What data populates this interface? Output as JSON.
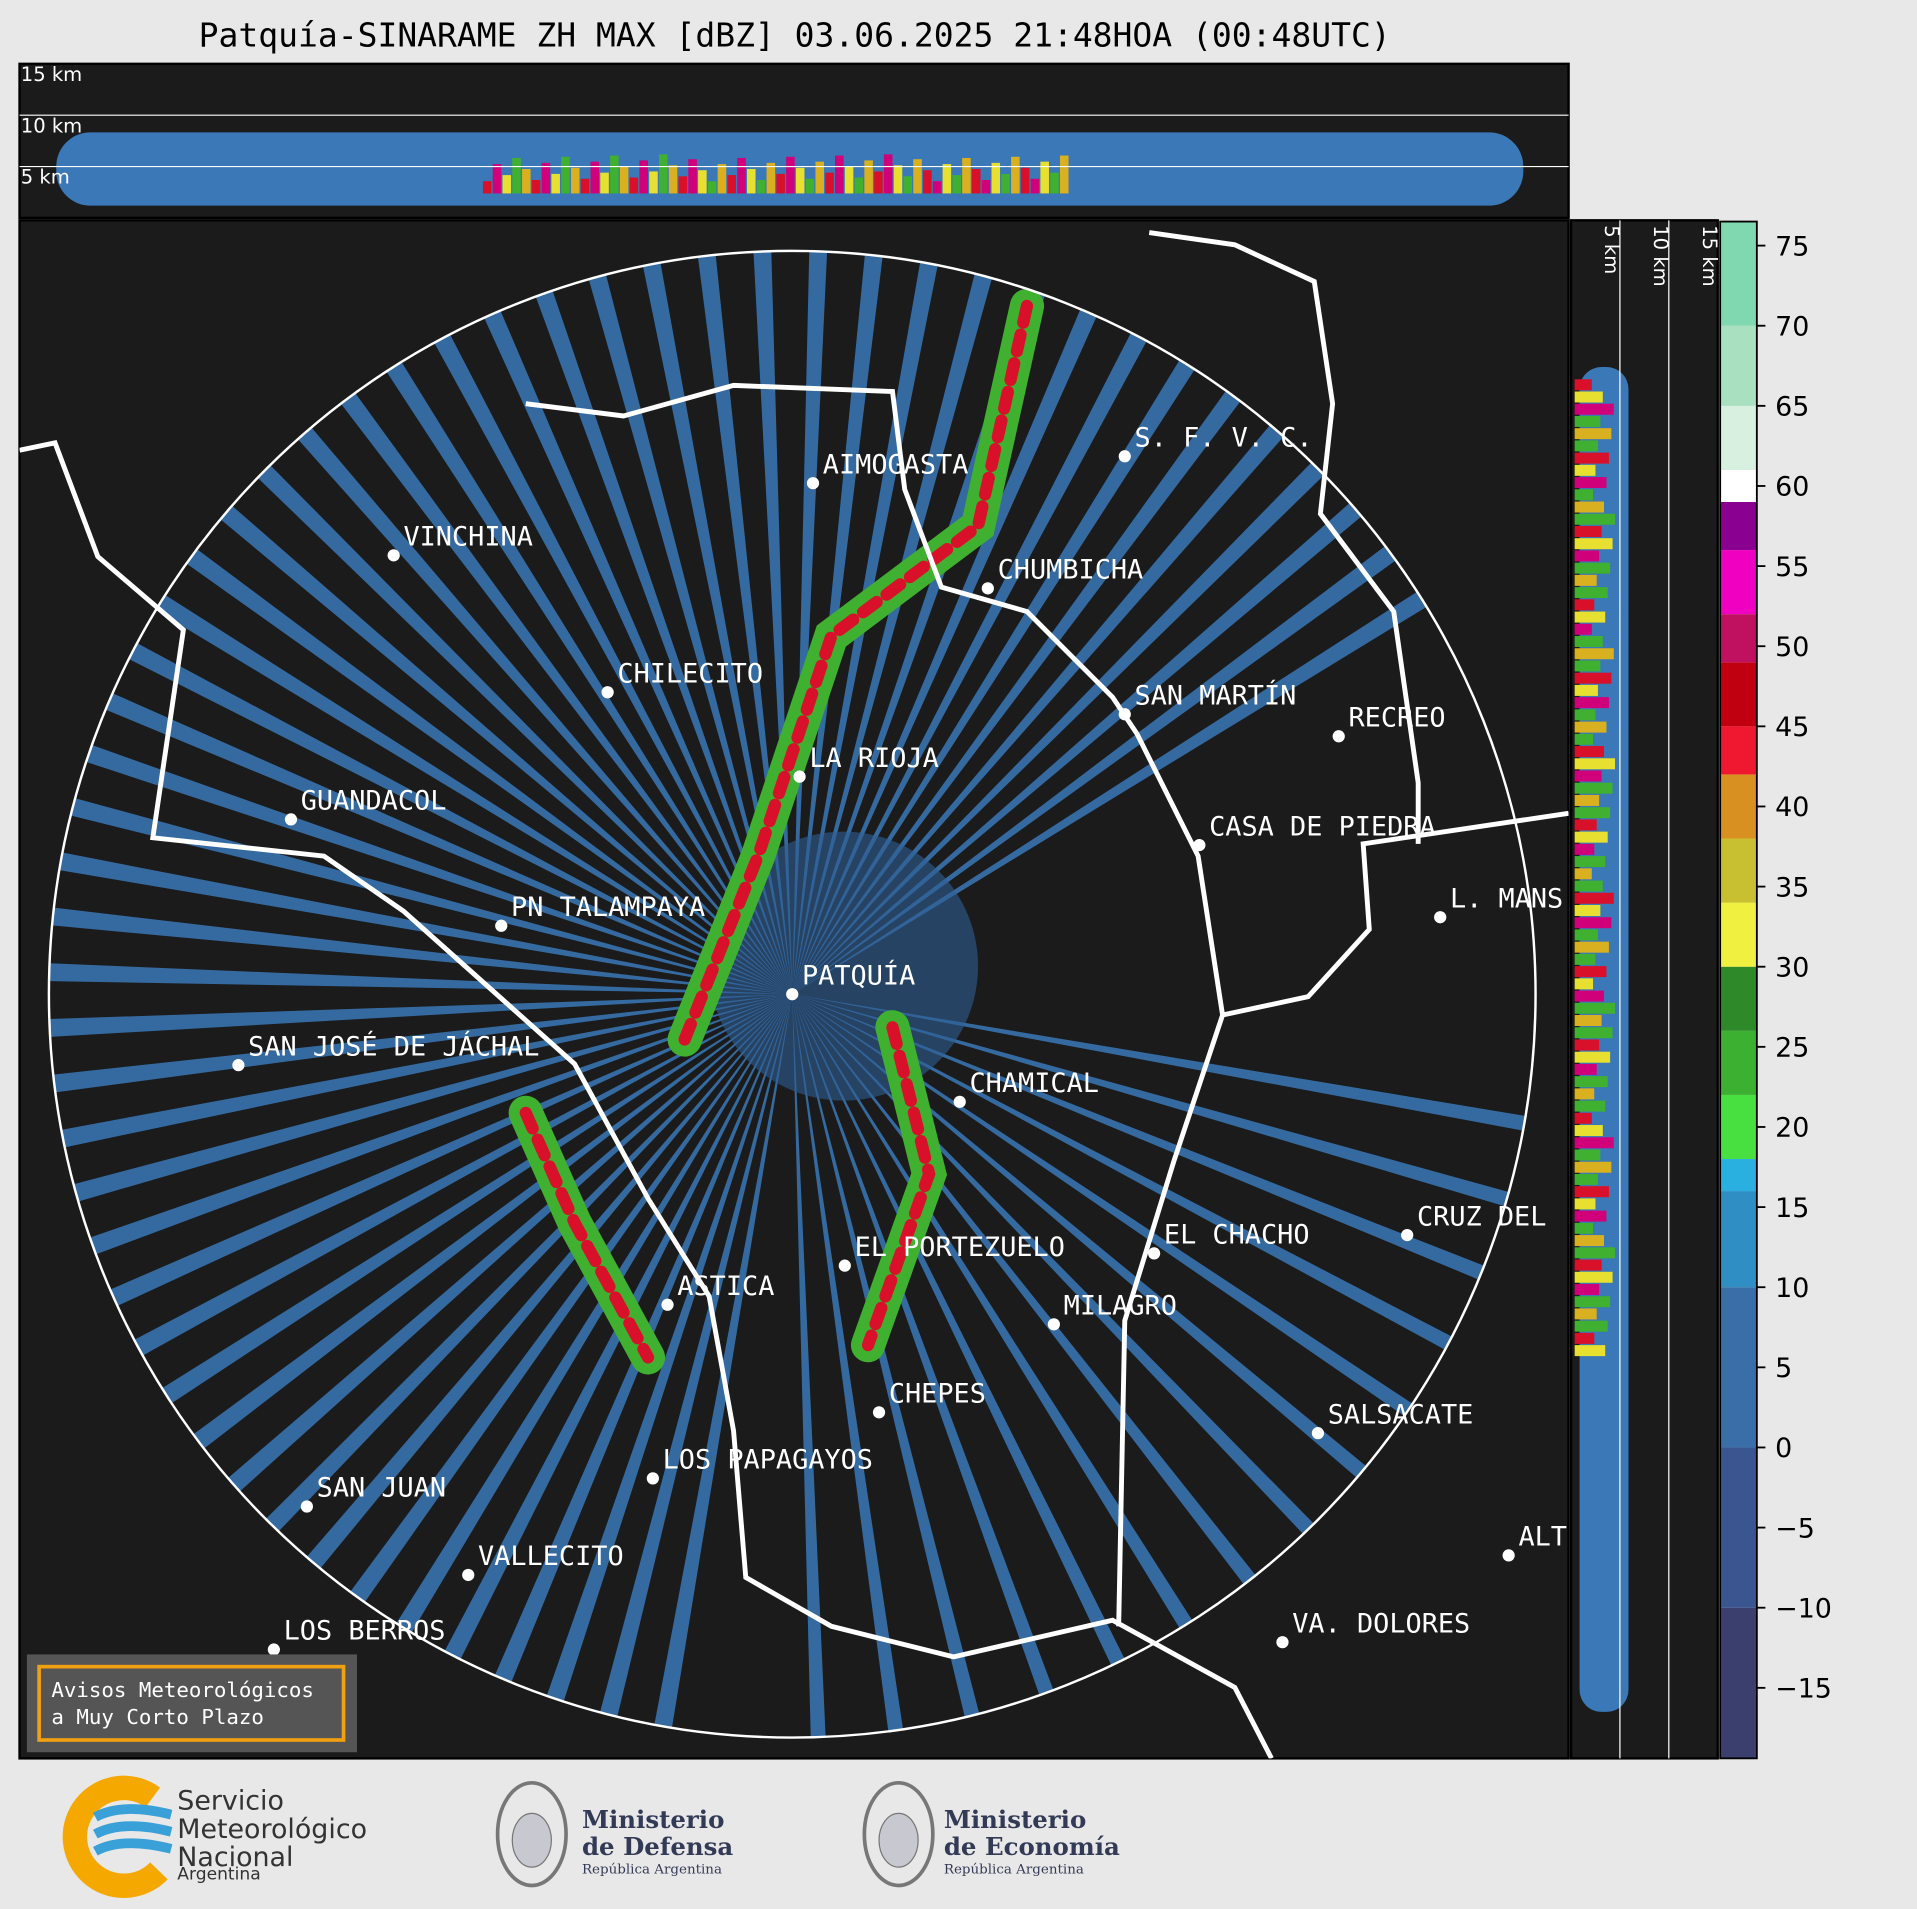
{
  "title": "Patquía-SINARAME ZH MAX [dBZ] 03.06.2025 21:48HOA (00:48UTC)",
  "top_panel": {
    "labels": [
      "15 km",
      "10 km",
      "5 km"
    ]
  },
  "side_panel": {
    "labels": [
      "5 km",
      "10 km",
      "15 km"
    ]
  },
  "colorbar": {
    "lim": [
      -19.4,
      76.5
    ],
    "ticks": [
      75,
      70,
      65,
      60,
      55,
      50,
      45,
      40,
      35,
      30,
      25,
      20,
      15,
      10,
      5,
      0,
      {
        "value": -5,
        "label": "−5"
      },
      {
        "value": -10,
        "label": "−10"
      },
      {
        "value": -15,
        "label": "−15"
      }
    ]
  },
  "cities": [
    "AIMOGASTA",
    "VINCHINA",
    "CHUMBICHA",
    "S. F. V. C.",
    "CHILECITO",
    "SAN MARTÍN",
    "RECREO",
    "LA RIOJA",
    "GUANDACOL",
    "CASA DE PIEDRA",
    "L. MANS",
    "PN TALAMPAYA",
    "PATQUÍA",
    "SAN JOSÉ DE JÁCHAL",
    "CHAMICAL",
    "CRUZ DEL",
    "EL CHACHO",
    "EL PORTEZUELO",
    "ASTICA",
    "MILAGRO",
    "CHEPES",
    "SALSACATE",
    "LOS PAPAGAYOS",
    "SAN JUAN",
    "ALT",
    "VALLECITO",
    "VA. DOLORES",
    "LOS BERROS"
  ],
  "notice": [
    "Avisos Meteorológicos",
    "a Muy Corto Plazo"
  ],
  "logos": {
    "smn": [
      "Servicio",
      "Meteorológico",
      "Nacional",
      "Argentina"
    ],
    "defensa": [
      "Ministerio",
      "de Defensa",
      "República Argentina"
    ],
    "economia": [
      "Ministerio",
      "de Economía",
      "República Argentina"
    ]
  }
}
